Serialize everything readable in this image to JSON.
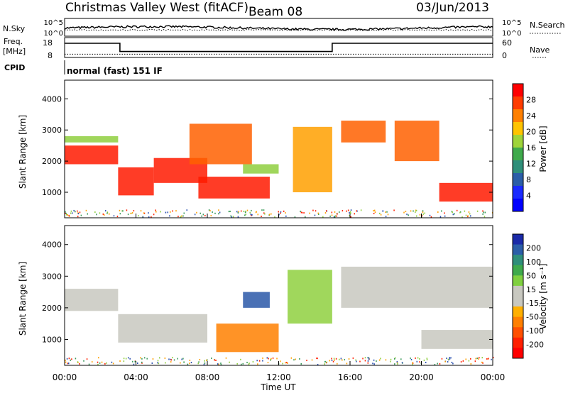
{
  "header": {
    "station": "Christmas Valley West (fitACF)",
    "beam": "Beam 08",
    "date": "03/Jun/2013"
  },
  "noise_panel": {
    "left_label": "N.Sky",
    "right_label": "N.Search",
    "ticks": [
      "10^5",
      "10^0"
    ]
  },
  "freq_panel": {
    "label_line1": "Freq.",
    "label_line2": "[MHz]",
    "left_ticks": [
      "18",
      "8"
    ],
    "right_label": "Nave",
    "right_ticks": [
      "60",
      "0"
    ],
    "high_mhz": 16,
    "low_mhz": 10.2,
    "nave_level": 10,
    "switch_times_h": [
      3.1,
      15.0
    ]
  },
  "cpid": {
    "label": "CPID",
    "text": "normal (fast) 151 IF"
  },
  "power_panel": {
    "ylabel": "Slant Range [km]",
    "cbar_label": "Power [dB]",
    "cbar_ticks": [
      "28",
      "24",
      "20",
      "16",
      "12",
      "8",
      "4"
    ],
    "cbar_colors": [
      "#ff0000",
      "#ff3c00",
      "#ff8000",
      "#ffc400",
      "#9fd43a",
      "#3faa4c",
      "#2f8f7a",
      "#2b5ea8",
      "#1a2aff",
      "#0000ff"
    ]
  },
  "velocity_panel": {
    "ylabel": "Slant Range [km]",
    "cbar_label": "Velocity [m s⁻¹]",
    "cbar_ticks": [
      "200",
      "100",
      "50",
      "15",
      "-15",
      "-50",
      "-100",
      "-200"
    ],
    "cbar_colors": [
      "#1a2aa8",
      "#2b5ea8",
      "#2f8f7a",
      "#3faa4c",
      "#80d040",
      "#c8c8c0",
      "#c8c8c0",
      "#ffb000",
      "#ff8000",
      "#ff5000",
      "#ff2000",
      "#ff0000"
    ]
  },
  "axes": {
    "xlabel": "Time UT",
    "xticks": [
      "00:00",
      "04:00",
      "08:00",
      "12:00",
      "16:00",
      "20:00",
      "00:00"
    ],
    "yticks": [
      "1000",
      "2000",
      "3000",
      "4000"
    ]
  },
  "chart_data": [
    {
      "type": "heatmap",
      "title": "",
      "quantity": "Power [dB]",
      "xlabel": "Time UT",
      "ylabel": "Slant Range [km]",
      "xlim_h": [
        0,
        24
      ],
      "ylim_km": [
        180,
        4600
      ],
      "clim_db": [
        0,
        32
      ],
      "features": [
        {
          "t": [
            0.0,
            3.0
          ],
          "range_km": [
            1900,
            2500
          ],
          "power_db": 26
        },
        {
          "t": [
            0.0,
            3.0
          ],
          "range_km": [
            2600,
            2800
          ],
          "power_db": 14
        },
        {
          "t": [
            3.0,
            5.0
          ],
          "range_km": [
            900,
            1800
          ],
          "power_db": 28
        },
        {
          "t": [
            5.0,
            8.0
          ],
          "range_km": [
            1300,
            2100
          ],
          "power_db": 26
        },
        {
          "t": [
            7.0,
            10.5
          ],
          "range_km": [
            1900,
            3200
          ],
          "power_db": 24
        },
        {
          "t": [
            7.5,
            11.5
          ],
          "range_km": [
            800,
            1500
          ],
          "power_db": 26
        },
        {
          "t": [
            10.0,
            12.0
          ],
          "range_km": [
            1600,
            1900
          ],
          "power_db": 14
        },
        {
          "t": [
            12.8,
            15.0
          ],
          "range_km": [
            1000,
            3100
          ],
          "power_db": 18
        },
        {
          "t": [
            15.5,
            18.0
          ],
          "range_km": [
            2600,
            3300
          ],
          "power_db": 24
        },
        {
          "t": [
            18.5,
            21.0
          ],
          "range_km": [
            2000,
            3300
          ],
          "power_db": 24
        },
        {
          "t": [
            21.0,
            24.0
          ],
          "range_km": [
            700,
            1300
          ],
          "power_db": 26
        }
      ]
    },
    {
      "type": "heatmap",
      "title": "",
      "quantity": "Velocity [m s⁻¹]",
      "xlabel": "Time UT",
      "ylabel": "Slant Range [km]",
      "xlim_h": [
        0,
        24
      ],
      "ylim_km": [
        180,
        4600
      ],
      "clim_ms": [
        -200,
        200
      ],
      "features": [
        {
          "t": [
            0.0,
            3.0
          ],
          "range_km": [
            1900,
            2600
          ],
          "velocity_ms": 0
        },
        {
          "t": [
            3.0,
            8.0
          ],
          "range_km": [
            900,
            1800
          ],
          "velocity_ms": 0
        },
        {
          "t": [
            8.5,
            12.0
          ],
          "range_km": [
            600,
            1500
          ],
          "velocity_ms": -60
        },
        {
          "t": [
            10.0,
            11.5
          ],
          "range_km": [
            2000,
            2500
          ],
          "velocity_ms": 100
        },
        {
          "t": [
            12.5,
            15.0
          ],
          "range_km": [
            1500,
            3200
          ],
          "velocity_ms": 30
        },
        {
          "t": [
            15.5,
            24.0
          ],
          "range_km": [
            2000,
            3300
          ],
          "velocity_ms": 0
        },
        {
          "t": [
            20.0,
            24.0
          ],
          "range_km": [
            700,
            1300
          ],
          "velocity_ms": 0
        }
      ]
    }
  ]
}
